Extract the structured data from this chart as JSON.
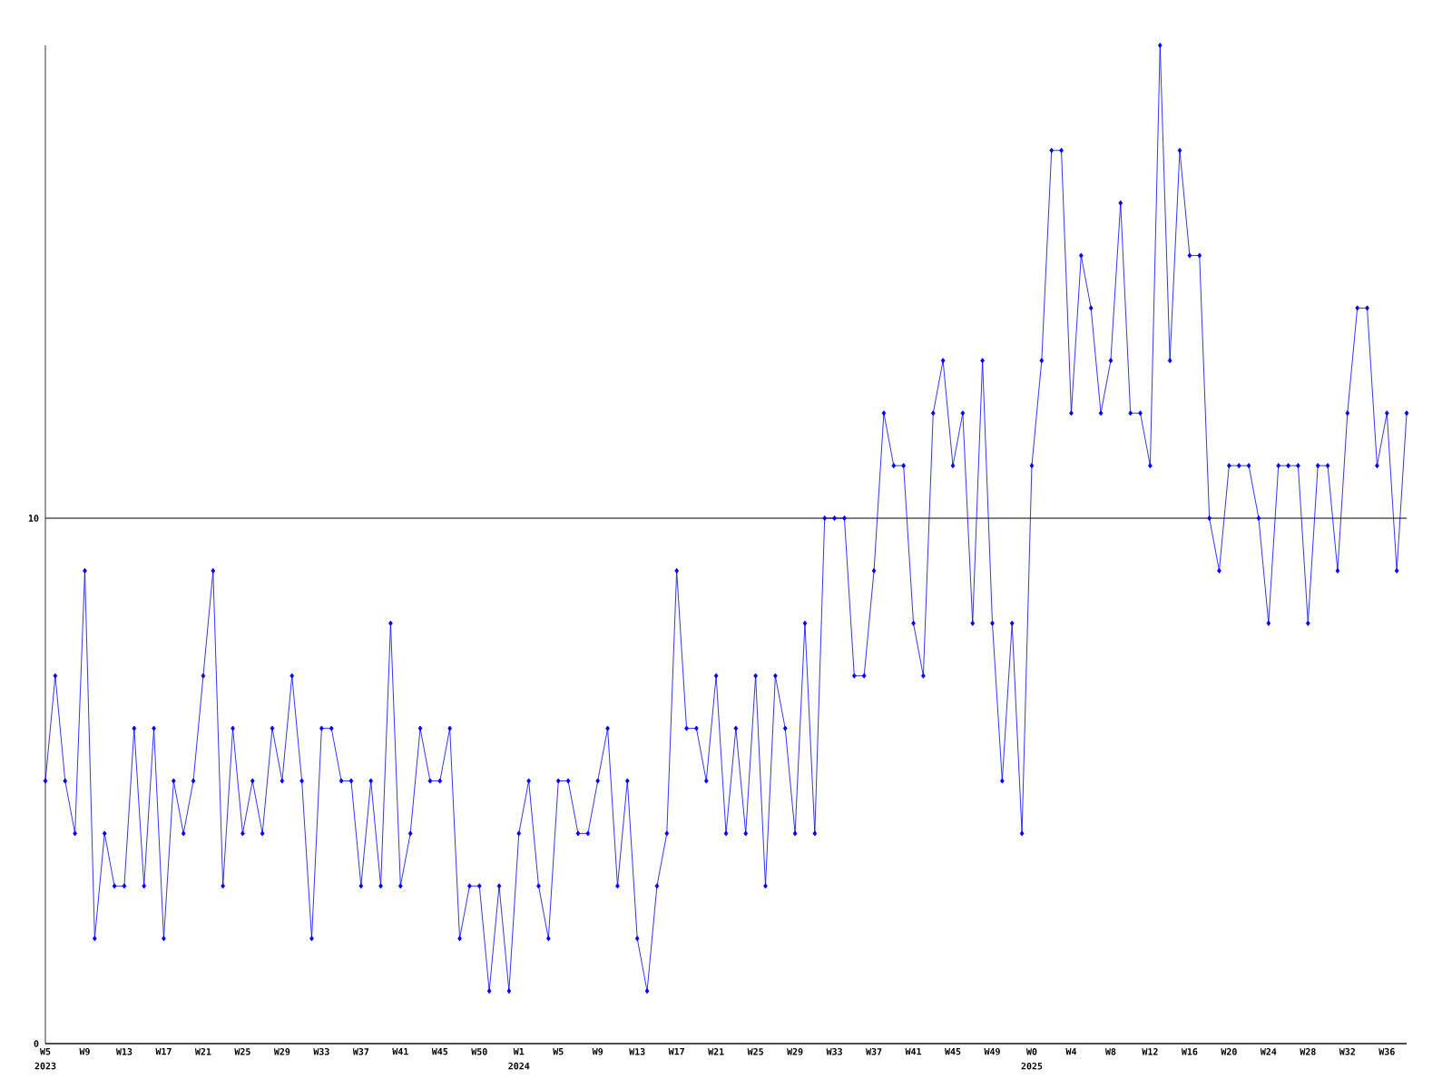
{
  "chart_data": {
    "type": "line",
    "color": "#0000ff",
    "marker": "diamond",
    "grid": "y",
    "categories": [
      "W5 2023",
      null,
      null,
      null,
      "W9",
      null,
      null,
      null,
      "W13",
      null,
      null,
      null,
      "W17",
      null,
      null,
      null,
      "W21",
      null,
      null,
      null,
      "W25",
      null,
      null,
      null,
      "W29",
      null,
      null,
      null,
      "W33",
      null,
      null,
      null,
      "W37",
      null,
      null,
      null,
      "W41",
      null,
      null,
      null,
      "W45",
      null,
      null,
      null,
      "W50",
      null,
      null,
      null,
      "W1 2024",
      null,
      null,
      null,
      "W5",
      null,
      null,
      null,
      "W9",
      null,
      null,
      null,
      "W13",
      null,
      null,
      null,
      "W17",
      null,
      null,
      null,
      "W21",
      null,
      null,
      null,
      "W25",
      null,
      null,
      null,
      "W29",
      null,
      null,
      null,
      "W33",
      null,
      null,
      null,
      "W37",
      null,
      null,
      null,
      "W41",
      null,
      null,
      null,
      "W45",
      null,
      null,
      null,
      "W49",
      null,
      null,
      null,
      "W0 2025",
      null,
      null,
      null,
      "W4",
      null,
      null,
      null,
      "W8",
      null,
      null,
      null,
      "W12",
      null,
      null,
      null,
      "W16",
      null,
      null,
      null,
      "W20",
      null,
      null,
      null,
      "W24",
      null,
      null,
      null,
      "W28",
      null,
      null,
      null,
      "W32",
      null,
      null,
      null,
      "W36",
      null,
      null
    ],
    "values": [
      5,
      7,
      5,
      4,
      9,
      2,
      4,
      3,
      3,
      6,
      3,
      6,
      2,
      5,
      4,
      5,
      7,
      9,
      3,
      6,
      4,
      5,
      4,
      6,
      5,
      7,
      5,
      2,
      6,
      6,
      5,
      5,
      3,
      5,
      3,
      8,
      3,
      4,
      6,
      5,
      5,
      6,
      2,
      3,
      3,
      1,
      3,
      1,
      4,
      5,
      3,
      2,
      5,
      5,
      4,
      4,
      5,
      6,
      3,
      5,
      2,
      1,
      3,
      4,
      9,
      6,
      6,
      5,
      7,
      4,
      6,
      4,
      7,
      3,
      7,
      6,
      4,
      8,
      4,
      10,
      10,
      10,
      7,
      7,
      9,
      12,
      11,
      11,
      8,
      7,
      12,
      13,
      11,
      12,
      8,
      13,
      8,
      5,
      8,
      4,
      11,
      13,
      17,
      17,
      12,
      15,
      14,
      12,
      13,
      16,
      12,
      12,
      11,
      19,
      13,
      17,
      15,
      15,
      10,
      9,
      11,
      11,
      11,
      10,
      8,
      11,
      11,
      11,
      8,
      11,
      11,
      9,
      12,
      14,
      14,
      11,
      12,
      9,
      12
    ],
    "ylim": [
      0,
      19
    ],
    "yticks": [
      0,
      10
    ]
  }
}
